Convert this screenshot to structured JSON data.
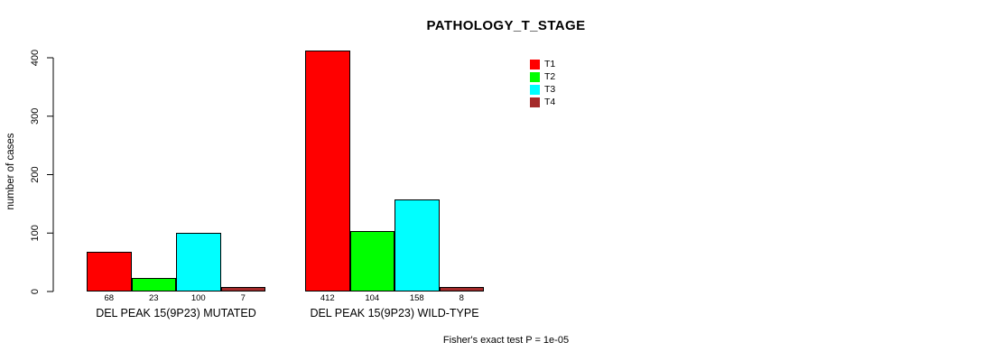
{
  "chart_data": {
    "type": "bar",
    "title": "PATHOLOGY_T_STAGE",
    "ylabel": "number of cases",
    "xlabel": "",
    "categories": [
      "DEL PEAK 15(9P23) MUTATED",
      "DEL PEAK 15(9P23) WILD-TYPE"
    ],
    "series": [
      {
        "name": "T1",
        "color": "#FF0000",
        "values": [
          68,
          412
        ]
      },
      {
        "name": "T2",
        "color": "#00FF00",
        "values": [
          23,
          104
        ]
      },
      {
        "name": "T3",
        "color": "#00FFFF",
        "values": [
          100,
          158
        ]
      },
      {
        "name": "T4",
        "color": "#A52A2A",
        "values": [
          7,
          8
        ]
      }
    ],
    "ylim": [
      0,
      400
    ],
    "yticks": [
      0,
      100,
      200,
      300,
      400
    ],
    "grid": false,
    "bar_value_labels": true,
    "y_tick_labels_rotated": true,
    "legend_position": "upper-center-right",
    "annotation": "Fisher's exact test P = 1e-05"
  }
}
